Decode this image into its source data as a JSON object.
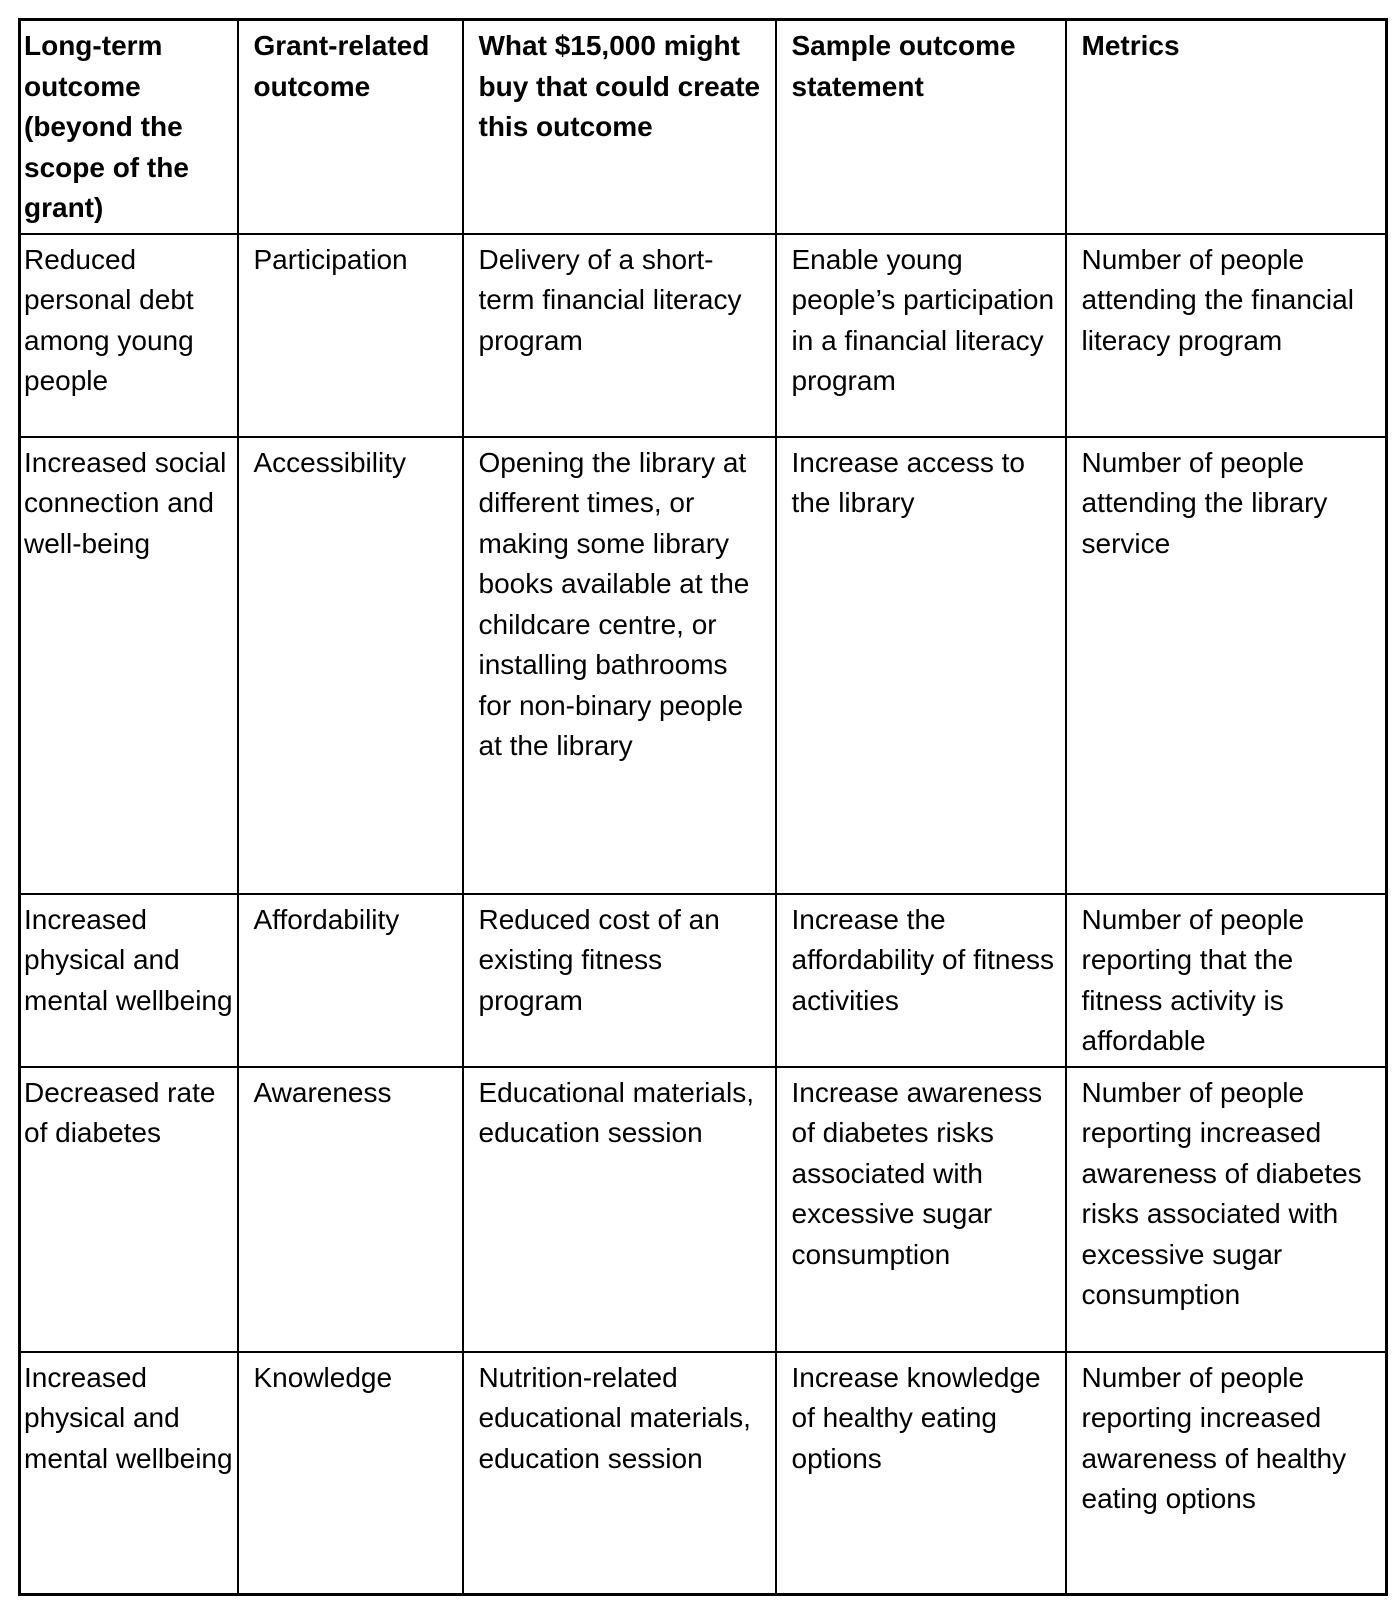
{
  "table": {
    "columns": [
      "Long-term outcome (beyond the scope of the grant)",
      "Grant-related outcome",
      "What $15,000 might buy that could create this outcome",
      "Sample outcome statement",
      "Metrics"
    ],
    "rows": [
      {
        "cells": [
          "Reduced personal debt among young people",
          "Participation",
          "Delivery of a short-term financial literacy program",
          "Enable young people’s participation in a financial literacy program",
          "Number of people attending the financial literacy program"
        ]
      },
      {
        "cells": [
          "Increased social connection and well-being",
          "Accessibility",
          "Opening the library at different times, or making some library books available at the childcare centre, or installing bathrooms for non-binary people at the library",
          "Increase access to the library",
          "Number of people attending the library service"
        ]
      },
      {
        "cells": [
          "Increased physical and mental wellbeing",
          "Affordability",
          "Reduced cost of an existing fitness program",
          "Increase the affordability of fitness activities",
          "Number of people reporting that the fitness activity is affordable"
        ]
      },
      {
        "cells": [
          "Decreased rate of diabetes",
          "Awareness",
          "Educational materials, education session",
          "Increase awareness of diabetes risks associated with excessive sugar consumption",
          "Number of people reporting increased awareness of diabetes risks associated with excessive sugar consumption"
        ]
      },
      {
        "cells": [
          "Increased physical and mental wellbeing",
          "Knowledge",
          "Nutrition-related educational materials, education session",
          "Increase knowledge of healthy eating options",
          "Number of people reporting increased awareness of healthy eating options"
        ]
      }
    ]
  },
  "colors": {
    "text": "#000000",
    "border": "#000000",
    "background": "#ffffff"
  }
}
